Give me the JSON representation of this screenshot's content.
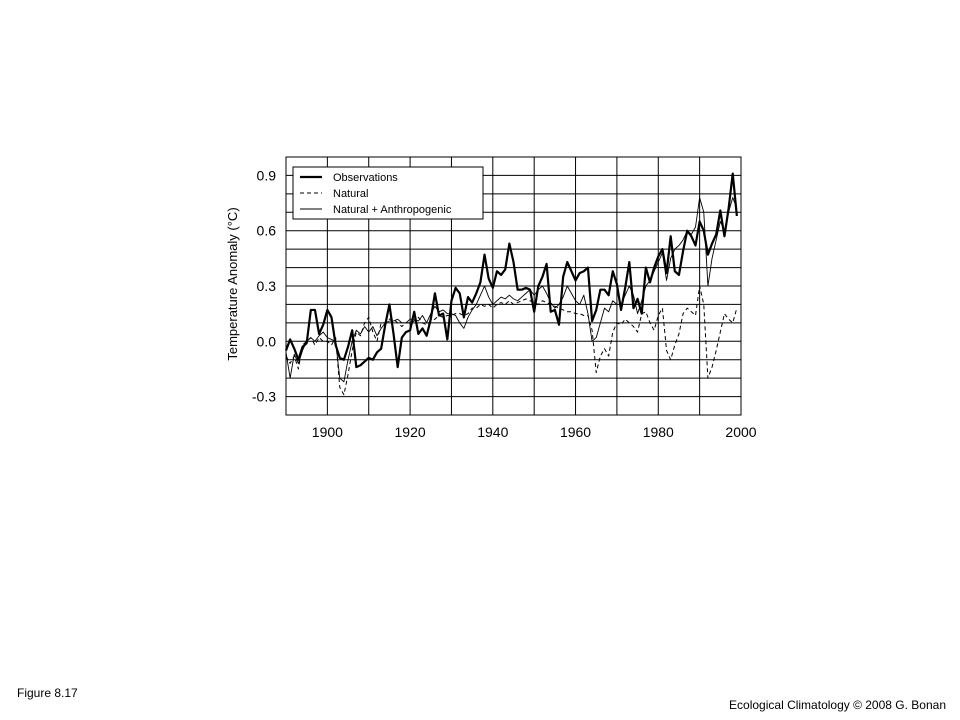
{
  "figure_label": "Figure 8.17",
  "credit": "Ecological Climatology © 2008 G. Bonan",
  "chart_data": {
    "type": "line",
    "title": "",
    "xlabel": "",
    "ylabel": "Temperature Anomaly (°C)",
    "xlim": [
      1890,
      2000
    ],
    "ylim": [
      -0.4,
      1.0
    ],
    "xticks": [
      "1900",
      "1920",
      "1940",
      "1960",
      "1980",
      "2000"
    ],
    "yticks": [
      "-0.3",
      "0.0",
      "0.3",
      "0.6",
      "0.9"
    ],
    "grid": true,
    "legend_position": "top-left",
    "x": [
      1890,
      1891,
      1892,
      1893,
      1894,
      1895,
      1896,
      1897,
      1898,
      1899,
      1900,
      1901,
      1902,
      1903,
      1904,
      1905,
      1906,
      1907,
      1908,
      1909,
      1910,
      1911,
      1912,
      1913,
      1914,
      1915,
      1916,
      1917,
      1918,
      1919,
      1920,
      1921,
      1922,
      1923,
      1924,
      1925,
      1926,
      1927,
      1928,
      1929,
      1930,
      1931,
      1932,
      1933,
      1934,
      1935,
      1936,
      1937,
      1938,
      1939,
      1940,
      1941,
      1942,
      1943,
      1944,
      1945,
      1946,
      1947,
      1948,
      1949,
      1950,
      1951,
      1952,
      1953,
      1954,
      1955,
      1956,
      1957,
      1958,
      1959,
      1960,
      1961,
      1962,
      1963,
      1964,
      1965,
      1966,
      1967,
      1968,
      1969,
      1970,
      1971,
      1972,
      1973,
      1974,
      1975,
      1976,
      1977,
      1978,
      1979,
      1980,
      1981,
      1982,
      1983,
      1984,
      1985,
      1986,
      1987,
      1988,
      1989,
      1990,
      1991,
      1992,
      1993,
      1994,
      1995,
      1996,
      1997,
      1998,
      1999
    ],
    "series": [
      {
        "name": "Observations",
        "style": "thick",
        "values": [
          -0.05,
          0.01,
          -0.04,
          -0.1,
          -0.03,
          -0.01,
          0.17,
          0.17,
          0.04,
          0.09,
          0.17,
          0.13,
          -0.02,
          -0.09,
          -0.1,
          -0.03,
          0.06,
          -0.14,
          -0.13,
          -0.11,
          -0.09,
          -0.1,
          -0.06,
          -0.04,
          0.09,
          0.2,
          0.04,
          -0.14,
          0.02,
          0.05,
          0.06,
          0.16,
          0.04,
          0.07,
          0.03,
          0.12,
          0.26,
          0.14,
          0.15,
          0.01,
          0.22,
          0.29,
          0.26,
          0.13,
          0.24,
          0.21,
          0.26,
          0.32,
          0.47,
          0.34,
          0.29,
          0.38,
          0.36,
          0.39,
          0.53,
          0.43,
          0.28,
          0.28,
          0.29,
          0.28,
          0.16,
          0.3,
          0.35,
          0.42,
          0.16,
          0.17,
          0.09,
          0.35,
          0.43,
          0.38,
          0.33,
          0.37,
          0.38,
          0.4,
          0.11,
          0.17,
          0.28,
          0.28,
          0.25,
          0.38,
          0.31,
          0.17,
          0.29,
          0.43,
          0.18,
          0.23,
          0.15,
          0.4,
          0.32,
          0.4,
          0.46,
          0.5,
          0.37,
          0.57,
          0.38,
          0.36,
          0.49,
          0.6,
          0.57,
          0.52,
          0.65,
          0.6,
          0.47,
          0.53,
          0.58,
          0.71,
          0.57,
          0.72,
          0.91,
          0.68
        ]
      },
      {
        "name": "Natural",
        "style": "dashed",
        "values": [
          -0.08,
          -0.12,
          -0.08,
          -0.15,
          -0.02,
          0.0,
          0.02,
          -0.02,
          0.02,
          0.0,
          0.0,
          -0.02,
          0.02,
          -0.25,
          -0.29,
          -0.18,
          -0.05,
          0.05,
          0.03,
          0.1,
          0.13,
          0.05,
          0.0,
          0.1,
          0.1,
          0.12,
          0.12,
          0.1,
          0.08,
          0.1,
          0.1,
          0.11,
          0.13,
          0.1,
          0.09,
          0.11,
          0.12,
          0.14,
          0.13,
          0.14,
          0.14,
          0.15,
          0.15,
          0.14,
          0.15,
          0.18,
          0.18,
          0.2,
          0.19,
          0.2,
          0.18,
          0.2,
          0.21,
          0.2,
          0.22,
          0.2,
          0.21,
          0.22,
          0.23,
          0.22,
          0.21,
          0.2,
          0.22,
          0.21,
          0.2,
          0.19,
          0.18,
          0.17,
          0.16,
          0.16,
          0.15,
          0.15,
          0.14,
          0.14,
          0.06,
          -0.17,
          -0.08,
          -0.04,
          -0.08,
          0.05,
          0.1,
          0.09,
          0.12,
          0.1,
          0.08,
          0.05,
          0.15,
          0.16,
          0.1,
          0.06,
          0.14,
          0.18,
          -0.05,
          -0.1,
          -0.02,
          0.04,
          0.15,
          0.18,
          0.16,
          0.14,
          0.3,
          0.2,
          -0.2,
          -0.14,
          -0.05,
          0.05,
          0.15,
          0.12,
          0.1,
          0.18
        ]
      },
      {
        "name": "Natural + Anthropogenic",
        "style": "thin",
        "values": [
          -0.06,
          -0.2,
          -0.07,
          -0.12,
          -0.05,
          0.0,
          0.02,
          0.0,
          0.03,
          0.05,
          0.02,
          0.01,
          0.0,
          -0.2,
          -0.22,
          -0.1,
          0.0,
          0.06,
          0.04,
          0.08,
          0.05,
          0.08,
          0.03,
          0.07,
          0.1,
          0.11,
          0.11,
          0.12,
          0.1,
          0.1,
          0.12,
          0.12,
          0.11,
          0.14,
          0.1,
          0.15,
          0.19,
          0.16,
          0.17,
          0.15,
          0.15,
          0.14,
          0.1,
          0.07,
          0.13,
          0.17,
          0.2,
          0.25,
          0.3,
          0.24,
          0.2,
          0.22,
          0.24,
          0.23,
          0.25,
          0.23,
          0.22,
          0.24,
          0.26,
          0.28,
          0.25,
          0.28,
          0.3,
          0.26,
          0.21,
          0.18,
          0.2,
          0.24,
          0.3,
          0.26,
          0.22,
          0.2,
          0.25,
          0.15,
          0.0,
          0.02,
          0.1,
          0.18,
          0.16,
          0.22,
          0.2,
          0.2,
          0.25,
          0.3,
          0.25,
          0.15,
          0.22,
          0.3,
          0.33,
          0.38,
          0.43,
          0.48,
          0.33,
          0.45,
          0.5,
          0.52,
          0.55,
          0.6,
          0.58,
          0.62,
          0.78,
          0.7,
          0.3,
          0.45,
          0.55,
          0.65,
          0.6,
          0.7,
          0.78,
          0.72
        ]
      }
    ]
  }
}
